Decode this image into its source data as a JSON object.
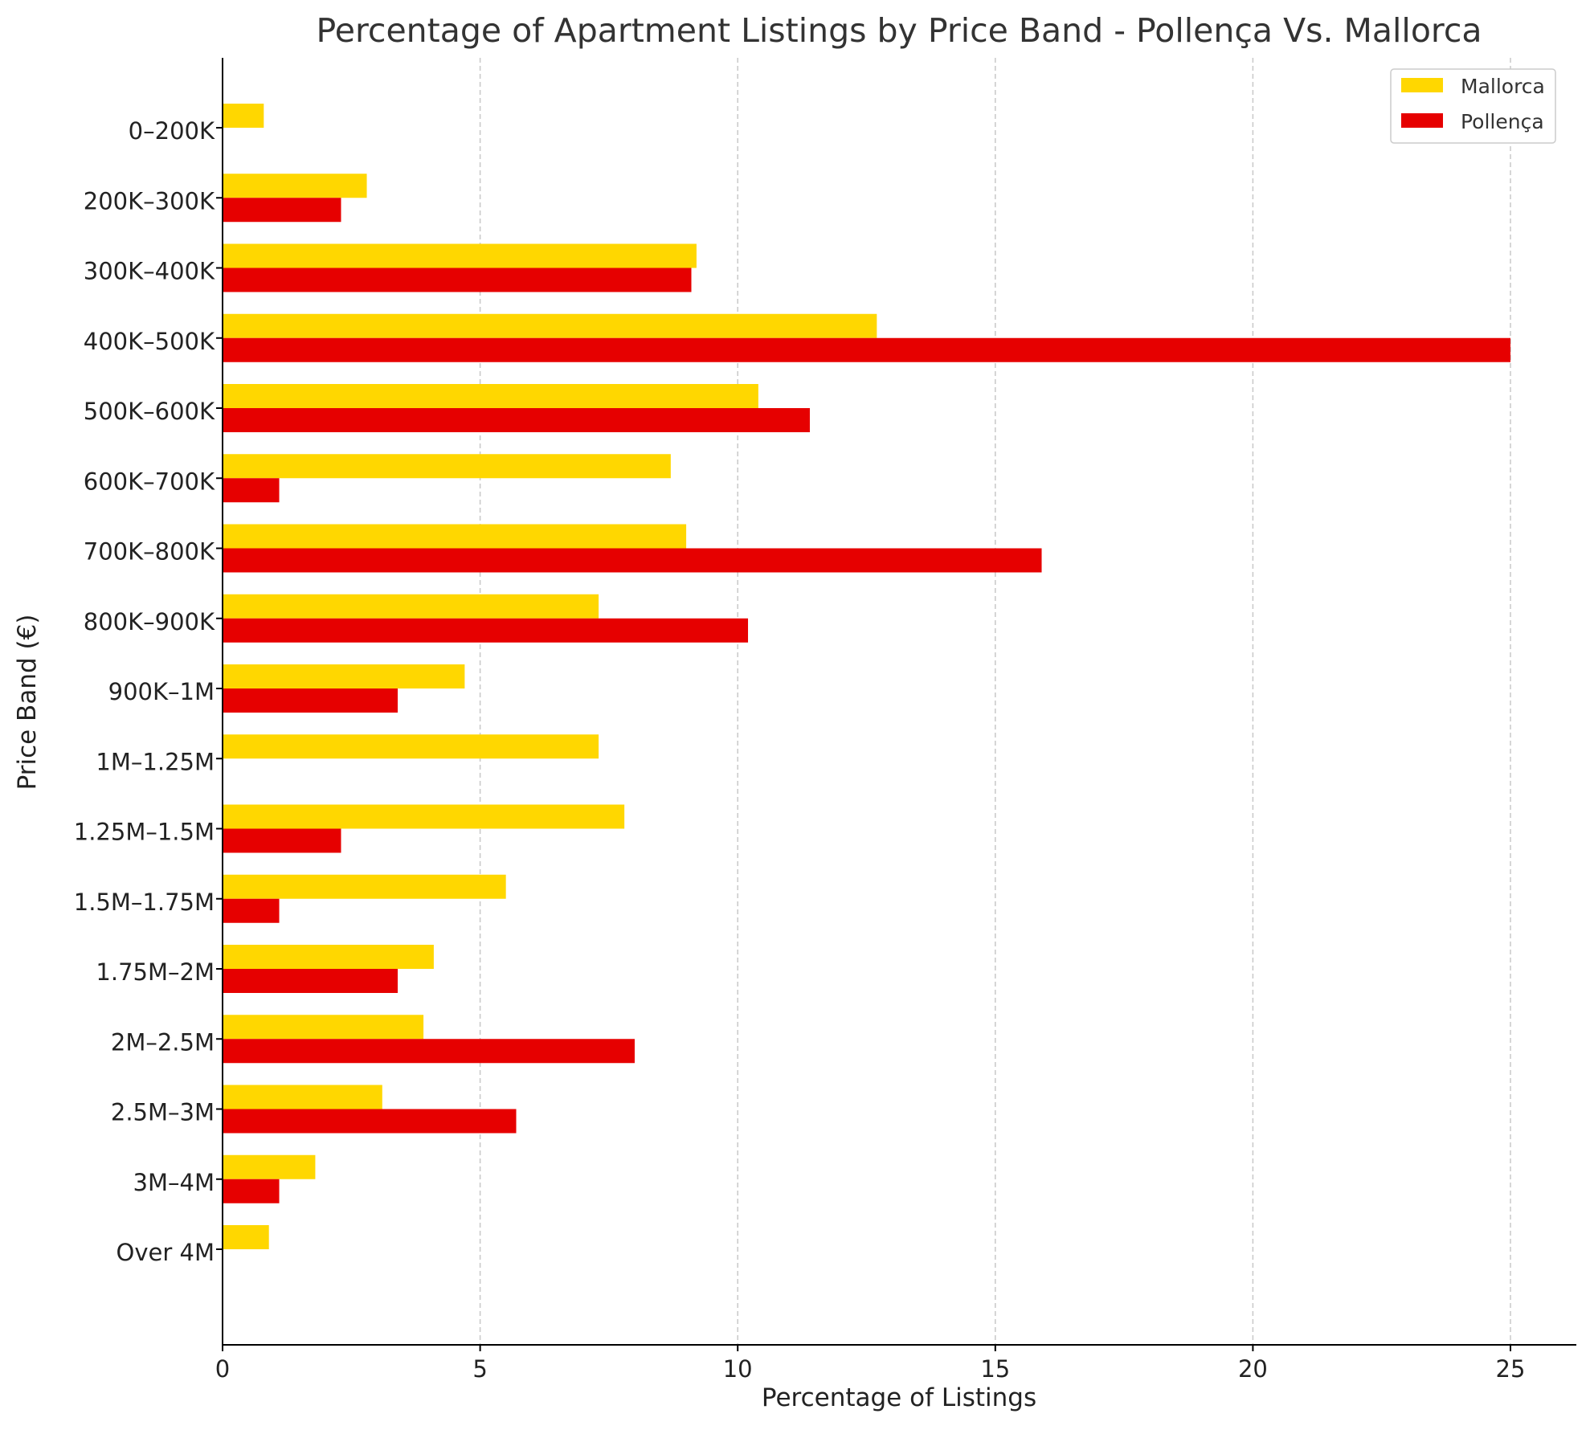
{
  "chart_data": {
    "type": "bar",
    "orientation": "horizontal",
    "title": "Percentage of Apartment Listings by Price Band - Pollença Vs. Mallorca",
    "xlabel": "Percentage of Listings",
    "ylabel": "Price Band (€)",
    "categories": [
      "0–200K",
      "200K–300K",
      "300K–400K",
      "400K–500K",
      "500K–600K",
      "600K–700K",
      "700K–800K",
      "800K–900K",
      "900K–1M",
      "1M–1.25M",
      "1.25M–1.5M",
      "1.5M–1.75M",
      "1.75M–2M",
      "2M–2.5M",
      "2.5M–3M",
      "3M–4M",
      "Over 4M"
    ],
    "series": [
      {
        "name": "Mallorca",
        "color": "#FFD700",
        "values": [
          0.8,
          2.8,
          9.2,
          12.7,
          10.4,
          8.7,
          9.0,
          7.3,
          4.7,
          7.3,
          7.8,
          5.5,
          4.1,
          3.9,
          3.1,
          1.8,
          0.9
        ]
      },
      {
        "name": "Pollença",
        "color": "#E60000",
        "values": [
          0,
          2.3,
          9.1,
          25.0,
          11.4,
          1.1,
          15.9,
          10.2,
          3.4,
          0,
          2.3,
          1.1,
          3.4,
          8.0,
          5.7,
          1.1,
          0
        ]
      }
    ],
    "xticks": [
      "0",
      "5",
      "10",
      "15",
      "20",
      "25"
    ],
    "xlim": [
      0,
      26.3
    ],
    "grid": "x, dashed",
    "legend": "top-right"
  }
}
